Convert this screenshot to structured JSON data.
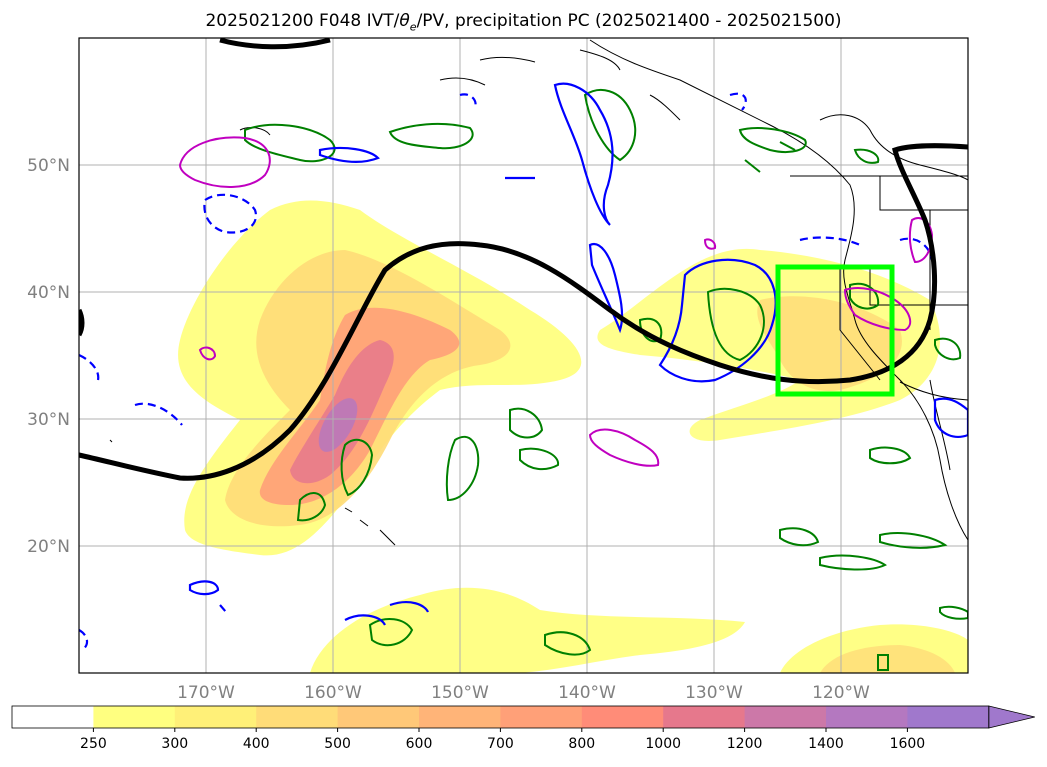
{
  "title_prefix": "2025021200 F048 IVT/",
  "title_theta": "θ",
  "title_theta_sub": "e",
  "title_suffix": "/PV, precipitation PC (2025021400 - 2025021500)",
  "map": {
    "extent": {
      "lon_min": -180,
      "lon_max": -110,
      "lat_min": 10,
      "lat_max": 60
    },
    "lat_labels": [
      "50°N",
      "40°N",
      "30°N",
      "20°N"
    ],
    "lat_values": [
      50,
      40,
      30,
      20
    ],
    "lon_labels": [
      "170°W",
      "160°W",
      "150°W",
      "140°W",
      "130°W",
      "120°W"
    ],
    "lon_values": [
      -170,
      -160,
      -150,
      -140,
      -130,
      -120
    ],
    "highlight_box": {
      "lon_min": -125,
      "lon_max": -116,
      "lat_min": 32,
      "lat_max": 42,
      "color": "#00ff00"
    },
    "contour_colors": {
      "pv": "#000000",
      "theta_solid": "#0000ff",
      "precip": "#008000",
      "ivt_purple": "#c000c0"
    }
  },
  "colorbar": {
    "levels": [
      "250",
      "300",
      "400",
      "500",
      "600",
      "700",
      "800",
      "1000",
      "1200",
      "1400",
      "1600"
    ],
    "colors": [
      "#ffffff",
      "#ffff80",
      "#fff078",
      "#ffdc78",
      "#ffc878",
      "#ffb478",
      "#ffa078",
      "#ff8c78",
      "#e6788c",
      "#cc78a8",
      "#b478c0",
      "#a078cc"
    ]
  }
}
